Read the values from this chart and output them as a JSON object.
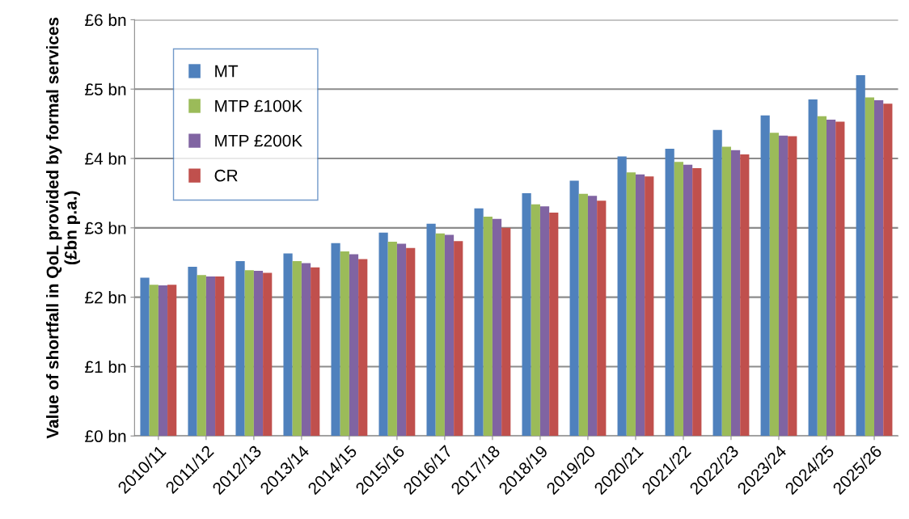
{
  "chart_data": {
    "type": "bar",
    "ylabel": "Value of shortfall in QoL provided by formal services (£bn p.a.)",
    "categories": [
      "2010/11",
      "2011/12",
      "2012/13",
      "2013/14",
      "2014/15",
      "2015/16",
      "2016/17",
      "2017/18",
      "2018/19",
      "2019/20",
      "2020/21",
      "2021/22",
      "2022/23",
      "2023/24",
      "2024/25",
      "2025/26"
    ],
    "series": [
      {
        "name": "MT",
        "color": "#4f81bd",
        "values": [
          2.28,
          2.44,
          2.52,
          2.63,
          2.78,
          2.93,
          3.06,
          3.28,
          3.5,
          3.68,
          4.03,
          4.14,
          4.41,
          4.62,
          4.85,
          5.2
        ]
      },
      {
        "name": "MTP £100K",
        "color": "#9bbb59",
        "values": [
          2.18,
          2.32,
          2.39,
          2.52,
          2.66,
          2.8,
          2.92,
          3.16,
          3.34,
          3.49,
          3.8,
          3.95,
          4.17,
          4.37,
          4.61,
          4.88
        ]
      },
      {
        "name": "MTP £200K",
        "color": "#8064a2",
        "values": [
          2.17,
          2.3,
          2.38,
          2.49,
          2.62,
          2.77,
          2.9,
          3.13,
          3.31,
          3.46,
          3.77,
          3.91,
          4.12,
          4.33,
          4.56,
          4.84
        ]
      },
      {
        "name": "CR",
        "color": "#c0504d",
        "values": [
          2.18,
          2.3,
          2.35,
          2.43,
          2.55,
          2.71,
          2.81,
          3.0,
          3.22,
          3.39,
          3.74,
          3.86,
          4.06,
          4.32,
          4.53,
          4.79
        ]
      }
    ],
    "ylim": [
      0,
      6
    ],
    "yticks": [
      {
        "value": 0,
        "label": "£0 bn"
      },
      {
        "value": 1,
        "label": "£1 bn"
      },
      {
        "value": 2,
        "label": "£2 bn"
      },
      {
        "value": 3,
        "label": "£3 bn"
      },
      {
        "value": 4,
        "label": "£4 bn"
      },
      {
        "value": 5,
        "label": "£5 bn"
      },
      {
        "value": 6,
        "label": "£6 bn"
      }
    ],
    "grid": "y",
    "legend": "top left"
  }
}
